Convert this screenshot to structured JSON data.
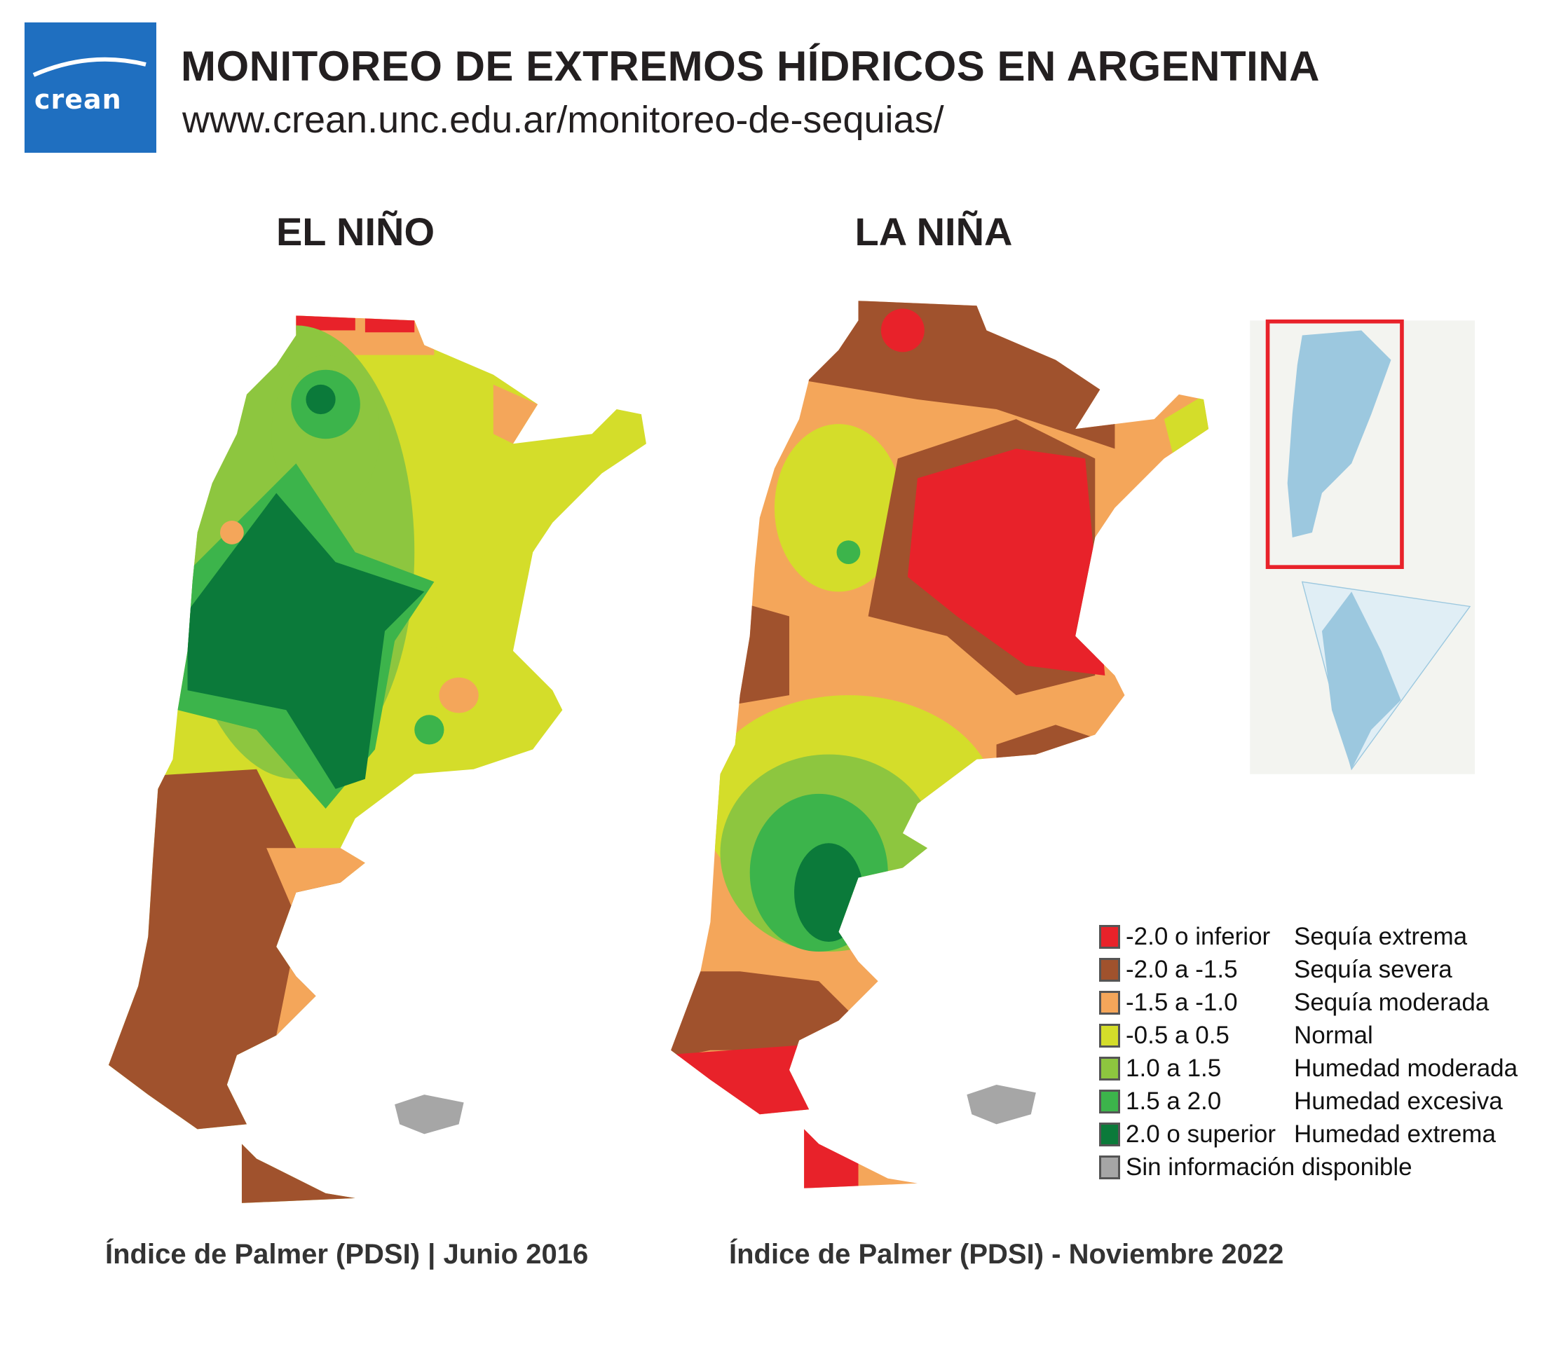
{
  "header": {
    "logo_text": "crean",
    "title": "MONITOREO DE EXTREMOS HÍDRICOS EN ARGENTINA",
    "url": "www.crean.unc.edu.ar/monitoreo-de-sequias/"
  },
  "maps": [
    {
      "title": "EL NIÑO",
      "caption": "Índice de Palmer (PDSI) | Junio 2016"
    },
    {
      "title": "LA NIÑA",
      "caption": "Índice de Palmer (PDSI) - Noviembre 2022"
    }
  ],
  "legend": [
    {
      "range": "-2.0 o inferior",
      "label": "Sequía extrema",
      "color": "#e8222a"
    },
    {
      "range": "-2.0 a -1.5",
      "label": "Sequía severa",
      "color": "#a0522d"
    },
    {
      "range": "-1.5 a -1.0",
      "label": "Sequía moderada",
      "color": "#f4a65a"
    },
    {
      "range": "-0.5 a 0.5",
      "label": "Normal",
      "color": "#d4dd2a"
    },
    {
      "range": "1.0 a 1.5",
      "label": "Humedad moderada",
      "color": "#8dc63f"
    },
    {
      "range": "1.5 a 2.0",
      "label": "Humedad excesiva",
      "color": "#3cb44b"
    },
    {
      "range": "2.0 o superior",
      "label": "Humedad extrema",
      "color": "#0b7a3a"
    },
    {
      "range": "Sin información disponible",
      "label": "",
      "color": "#a6a6a6"
    }
  ]
}
